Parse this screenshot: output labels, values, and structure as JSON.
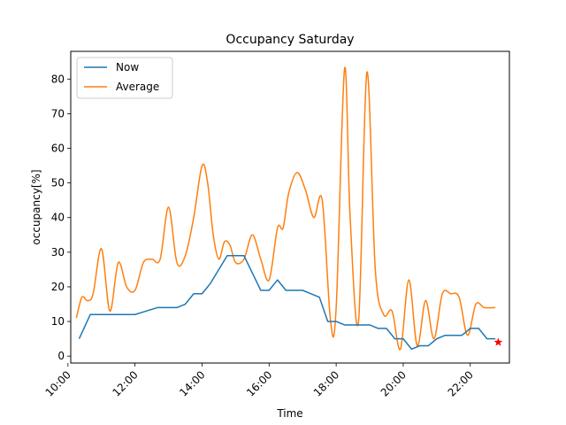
{
  "chart_data": {
    "type": "line",
    "title": "Occupancy Saturday",
    "xlabel": "Time",
    "ylabel": "occupancy[%]",
    "xlim": [
      "10:05",
      "23:10"
    ],
    "ylim": [
      -2,
      88
    ],
    "xticks": [
      "10:00",
      "12:00",
      "14:00",
      "16:00",
      "18:00",
      "20:00",
      "22:00"
    ],
    "yticks": [
      0,
      10,
      20,
      30,
      40,
      50,
      60,
      70,
      80
    ],
    "grid": false,
    "legend": "top-left",
    "series": [
      {
        "name": "Now",
        "color": "#1f77b4",
        "style": "linear",
        "x": [
          "10:20",
          "10:40",
          "11:00",
          "11:20",
          "11:40",
          "12:00",
          "12:20",
          "12:40",
          "13:00",
          "13:15",
          "13:30",
          "13:45",
          "14:00",
          "14:15",
          "14:30",
          "14:45",
          "15:00",
          "15:15",
          "15:30",
          "15:45",
          "16:00",
          "16:10",
          "16:15",
          "16:30",
          "16:45",
          "17:00",
          "17:15",
          "17:30",
          "17:45",
          "18:00",
          "18:15",
          "18:30",
          "18:45",
          "19:00",
          "19:15",
          "19:30",
          "19:45",
          "20:00",
          "20:15",
          "20:30",
          "20:45",
          "21:00",
          "21:15",
          "21:30",
          "21:45",
          "22:00",
          "22:15",
          "22:30",
          "22:45"
        ],
        "y": [
          5,
          12,
          12,
          12,
          12,
          12,
          13,
          14,
          14,
          14,
          15,
          18,
          18,
          21,
          25,
          29,
          29,
          29,
          24,
          19,
          19,
          21,
          22,
          19,
          19,
          19,
          18,
          17,
          10,
          10,
          9,
          9,
          9,
          9,
          8,
          8,
          5,
          5,
          2,
          3,
          3,
          5,
          6,
          6,
          6,
          8,
          8,
          5,
          5
        ]
      },
      {
        "name": "Average",
        "color": "#ff7f0e",
        "style": "smooth",
        "x": [
          "10:15",
          "10:25",
          "10:35",
          "10:45",
          "11:00",
          "11:15",
          "11:30",
          "11:45",
          "12:00",
          "12:15",
          "12:30",
          "12:45",
          "13:00",
          "13:15",
          "13:30",
          "13:45",
          "14:00",
          "14:10",
          "14:20",
          "14:30",
          "14:40",
          "14:50",
          "15:00",
          "15:15",
          "15:30",
          "15:45",
          "16:00",
          "16:15",
          "16:25",
          "16:35",
          "16:50",
          "17:05",
          "17:20",
          "17:35",
          "17:50",
          "18:00",
          "18:15",
          "18:25",
          "18:40",
          "18:55",
          "19:10",
          "19:25",
          "19:40",
          "19:55",
          "20:10",
          "20:25",
          "20:40",
          "20:55",
          "21:10",
          "21:25",
          "21:40",
          "21:55",
          "22:10",
          "22:25",
          "22:45"
        ],
        "y": [
          11,
          17,
          16,
          18,
          31,
          13,
          27,
          20,
          19,
          27,
          28,
          28,
          43,
          27,
          29,
          40,
          55,
          50,
          35,
          28,
          33,
          32,
          27,
          28,
          35,
          28,
          22,
          37,
          37,
          47,
          53,
          48,
          40,
          45,
          10,
          14,
          83,
          40,
          10,
          82,
          25,
          12,
          13,
          2,
          22,
          3,
          16,
          5,
          18,
          18,
          17,
          6,
          15,
          14,
          14
        ]
      }
    ],
    "marker": {
      "name": "latest",
      "x": "22:50",
      "y": 4,
      "shape": "star",
      "color": "#ff0000"
    }
  }
}
